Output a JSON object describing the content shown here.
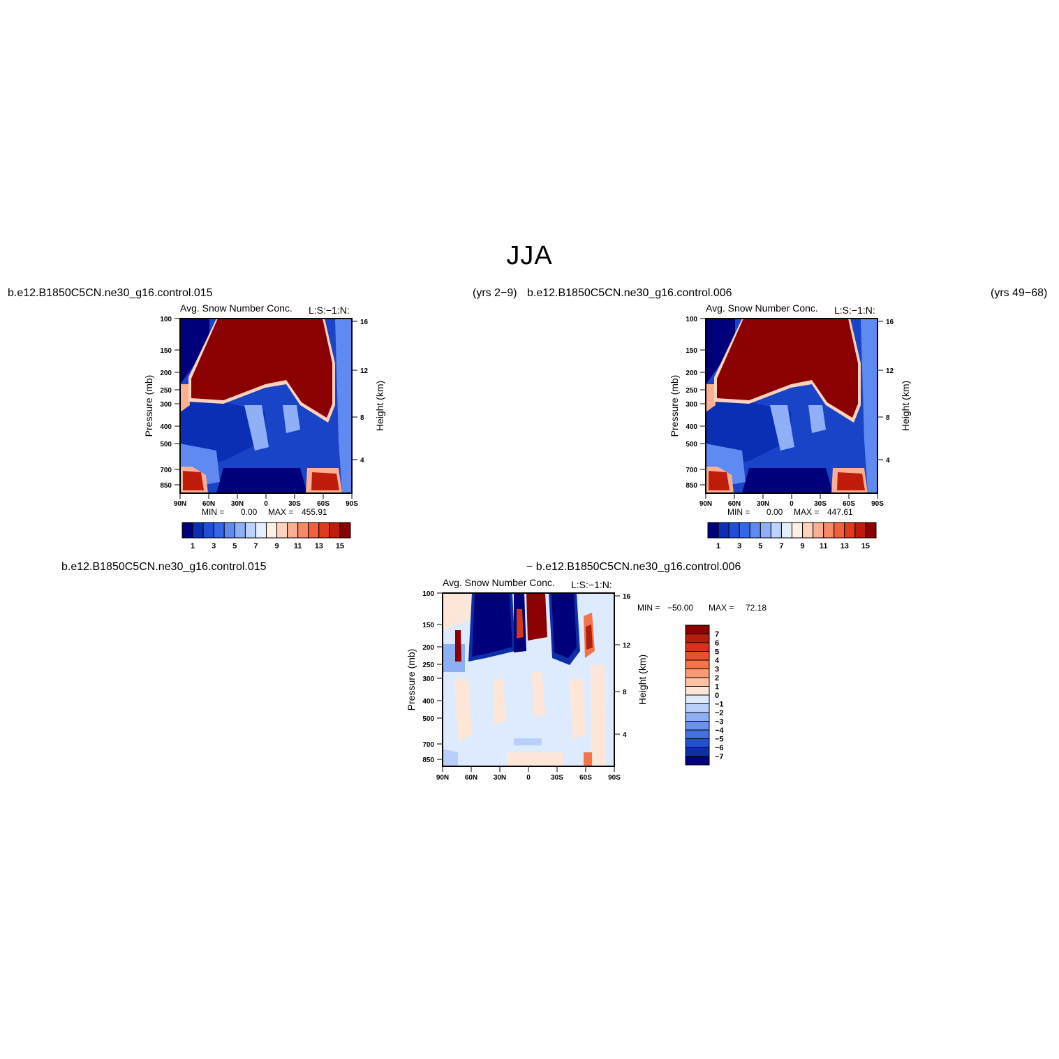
{
  "figure": {
    "title": "JJA"
  },
  "panels": [
    {
      "case": "b.e12.B1850C5CN.ne30_g16.control.015",
      "years": "(yrs 2−9)",
      "title": "Avg. Snow Number Conc.",
      "units": "L:S:−1:N:",
      "ylabel": "Pressure (mb)",
      "ylabel_right": "Height (km)",
      "min_label": "MIN =",
      "min_value": "0.00",
      "max_label": "MAX =",
      "max_value": "455.91"
    },
    {
      "case": "b.e12.B1850C5CN.ne30_g16.control.006",
      "years": "(yrs 49−68)",
      "title": "Avg. Snow Number Conc.",
      "units": "L:S:−1:N:",
      "ylabel": "Pressure (mb)",
      "ylabel_right": "Height (km)",
      "min_label": "MIN =",
      "min_value": "0.00",
      "max_label": "MAX =",
      "max_value": "447.61"
    },
    {
      "case_left": "b.e12.B1850C5CN.ne30_g16.control.015",
      "case_right": "− b.e12.B1850C5CN.ne30_g16.control.006",
      "title": "Avg. Snow Number Conc.",
      "units": "L:S:−1:N:",
      "ylabel": "Pressure (mb)",
      "ylabel_right": "Height (km)",
      "min_label": "MIN =",
      "min_value": "−50.00",
      "max_label": "MAX =",
      "max_value": "72.18"
    }
  ],
  "chart_data": [
    {
      "type": "heatmap",
      "title": "Avg. Snow Number Conc.",
      "ylabel": "Pressure (mb)",
      "ylabel_right": "Height (km)",
      "x_ticks": [
        "90N",
        "60N",
        "30N",
        "0",
        "30S",
        "60S",
        "90S"
      ],
      "y_ticks": [
        "100",
        "150",
        "200",
        "250",
        "300",
        "400",
        "500",
        "700",
        "850"
      ],
      "y_ticks_right": [
        "16",
        "12",
        "8",
        "4"
      ],
      "y_scale": "log pressure",
      "colorbar_labels": [
        "1",
        "3",
        "5",
        "7",
        "9",
        "11",
        "13",
        "15"
      ],
      "colorbar_colors": [
        "#00007a",
        "#0a2fb4",
        "#1f4fd6",
        "#3466ea",
        "#5f8af2",
        "#8fb0f6",
        "#bcd2fa",
        "#e4eefd",
        "#fef1e4",
        "#fdd3bd",
        "#fcb093",
        "#f98a68",
        "#f2603f",
        "#e13b1c",
        "#c01c0c",
        "#8b0000"
      ],
      "min": 0.0,
      "max": 455.91
    },
    {
      "type": "heatmap",
      "title": "Avg. Snow Number Conc.",
      "ylabel": "Pressure (mb)",
      "ylabel_right": "Height (km)",
      "x_ticks": [
        "90N",
        "60N",
        "30N",
        "0",
        "30S",
        "60S",
        "90S"
      ],
      "y_ticks": [
        "100",
        "150",
        "200",
        "250",
        "300",
        "400",
        "500",
        "700",
        "850"
      ],
      "y_ticks_right": [
        "16",
        "12",
        "8",
        "4"
      ],
      "y_scale": "log pressure",
      "colorbar_labels": [
        "1",
        "3",
        "5",
        "7",
        "9",
        "11",
        "13",
        "15"
      ],
      "colorbar_colors": [
        "#00007a",
        "#0a2fb4",
        "#1f4fd6",
        "#3466ea",
        "#5f8af2",
        "#8fb0f6",
        "#bcd2fa",
        "#e4eefd",
        "#fef1e4",
        "#fdd3bd",
        "#fcb093",
        "#f98a68",
        "#f2603f",
        "#e13b1c",
        "#c01c0c",
        "#8b0000"
      ],
      "min": 0.0,
      "max": 447.61
    },
    {
      "type": "heatmap",
      "title": "Avg. Snow Number Conc.",
      "ylabel": "Pressure (mb)",
      "ylabel_right": "Height (km)",
      "x_ticks": [
        "90N",
        "60N",
        "30N",
        "0",
        "30S",
        "60S",
        "90S"
      ],
      "y_ticks": [
        "100",
        "150",
        "200",
        "250",
        "300",
        "400",
        "500",
        "700",
        "850"
      ],
      "y_ticks_right": [
        "16",
        "12",
        "8",
        "4"
      ],
      "y_scale": "log pressure",
      "colorbar_labels": [
        "7",
        "6",
        "5",
        "4",
        "3",
        "2",
        "1",
        "0",
        "−1",
        "−2",
        "−3",
        "−4",
        "−5",
        "−6",
        "−7"
      ],
      "colorbar_colors": [
        "#8b0000",
        "#b21f0d",
        "#d2351a",
        "#e9502e",
        "#f47449",
        "#fa9a72",
        "#fdc2a5",
        "#fee7d8",
        "#deeafd",
        "#b8cff9",
        "#8eb0f5",
        "#6a91ee",
        "#4470e2",
        "#2450cd",
        "#0c2fa8",
        "#00007a"
      ],
      "min": -50.0,
      "max": 72.18
    }
  ]
}
